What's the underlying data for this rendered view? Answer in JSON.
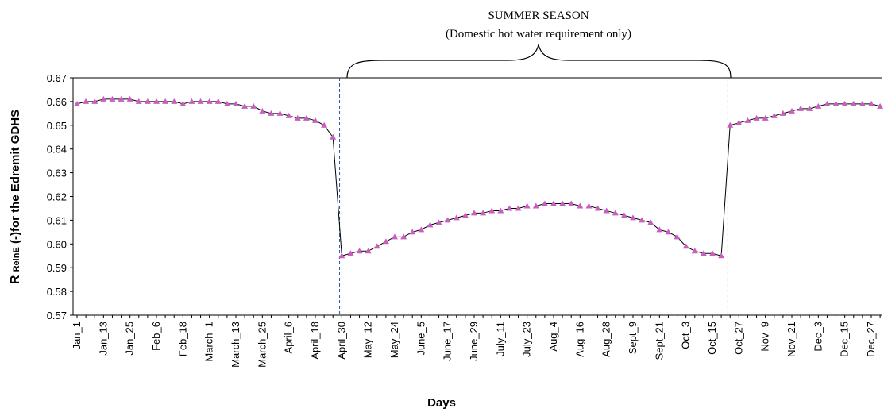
{
  "chart_data": {
    "type": "line",
    "annotation_title": "SUMMER SEASON",
    "annotation_subtitle": "(Domestic hot water requirement only)",
    "x_label": "Days",
    "y_label": "R",
    "y_label_subscript": "ReinE",
    "y_label_rest": "(-)for the Edremit GDHS",
    "categories": [
      "Jan_1",
      null,
      null,
      "Jan_13",
      null,
      null,
      "Jan_25",
      null,
      null,
      "Feb_6",
      null,
      null,
      "Feb_18",
      null,
      null,
      "March_1",
      null,
      null,
      "March_13",
      null,
      null,
      "March_25",
      null,
      null,
      "April_6",
      null,
      null,
      "April_18",
      null,
      null,
      "April_30",
      null,
      null,
      "May_12",
      null,
      null,
      "May_24",
      null,
      null,
      "June_5",
      null,
      null,
      "June_17",
      null,
      null,
      "June_29",
      null,
      null,
      "July_11",
      null,
      null,
      "July_23",
      null,
      null,
      "Aug_4",
      null,
      null,
      "Aug_16",
      null,
      null,
      "Aug_28",
      null,
      null,
      "Sept_9",
      null,
      null,
      "Sept_21",
      null,
      null,
      "Oct_3",
      null,
      null,
      "Oct_15",
      null,
      null,
      "Oct_27",
      null,
      null,
      "Nov_9",
      null,
      null,
      "Nov_21",
      null,
      null,
      "Dec_3",
      null,
      null,
      "Dec_15",
      null,
      null,
      "Dec_27",
      null
    ],
    "series": [
      {
        "color": "#c85fc0",
        "values": [
          0.659,
          0.66,
          0.66,
          0.661,
          0.661,
          0.661,
          0.661,
          0.66,
          0.66,
          0.66,
          0.66,
          0.66,
          0.659,
          0.66,
          0.66,
          0.66,
          0.66,
          0.659,
          0.659,
          0.658,
          0.658,
          0.656,
          0.655,
          0.655,
          0.654,
          0.653,
          0.653,
          0.652,
          0.65,
          0.645,
          0.595,
          0.596,
          0.597,
          0.597,
          0.599,
          0.601,
          0.603,
          0.603,
          0.605,
          0.606,
          0.608,
          0.609,
          0.61,
          0.611,
          0.612,
          0.613,
          0.613,
          0.614,
          0.614,
          0.615,
          0.615,
          0.616,
          0.616,
          0.617,
          0.617,
          0.617,
          0.617,
          0.616,
          0.616,
          0.615,
          0.614,
          0.613,
          0.612,
          0.611,
          0.61,
          0.609,
          0.606,
          0.605,
          0.603,
          0.599,
          0.597,
          0.596,
          0.596,
          0.595,
          0.65,
          0.651,
          0.652,
          0.653,
          0.653,
          0.654,
          0.655,
          0.656,
          0.657,
          0.657,
          0.658,
          0.659,
          0.659,
          0.659,
          0.659,
          0.659,
          0.659,
          0.658
        ]
      }
    ],
    "ylim": [
      0.57,
      0.67
    ],
    "yticks": [
      0.57,
      0.58,
      0.59,
      {
        "value": 0.6,
        "label": "0.60"
      },
      0.61,
      0.62,
      0.63,
      0.64,
      0.65,
      0.66,
      0.67
    ],
    "grid": false
  }
}
